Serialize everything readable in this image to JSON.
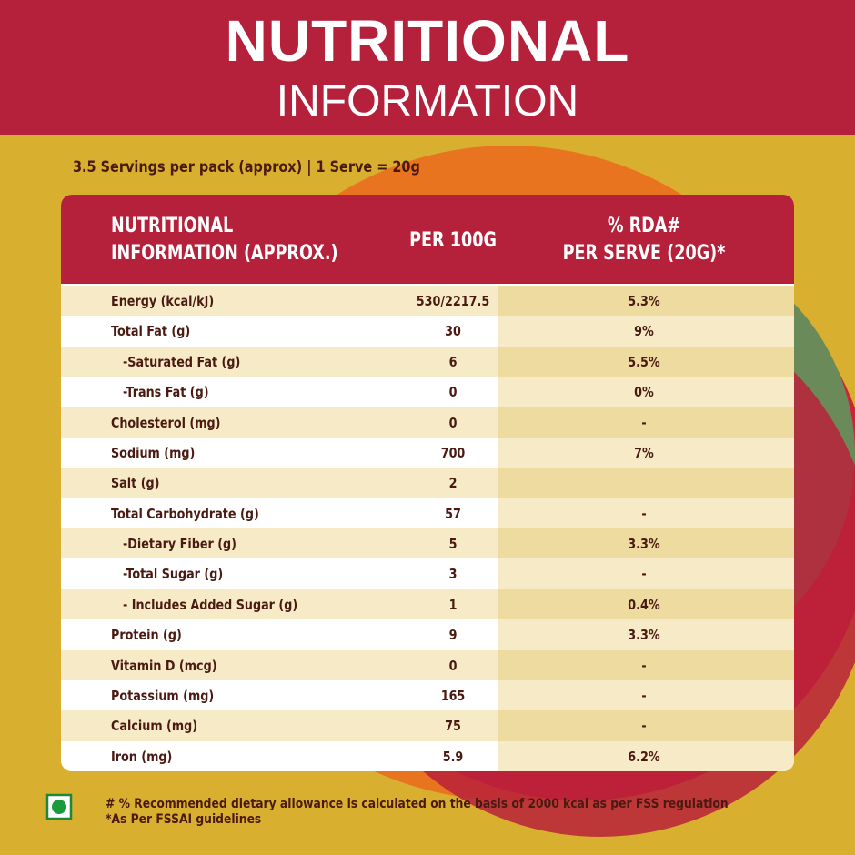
{
  "header": {
    "title": "NUTRITIONAL",
    "subtitle": "INFORMATION"
  },
  "serving": "3.5 Servings per pack (approx) | 1 Serve = 20g",
  "table": {
    "columns": [
      "NUTRITIONAL\nINFORMATION (APPROX.)",
      "PER 100G",
      "% RDA#\nPER SERVE (20G)*"
    ],
    "rows": [
      {
        "label": "Energy (kcal/kJ)",
        "per100g": "530/2217.5",
        "rda": "5.3%"
      },
      {
        "label": "Total Fat (g)",
        "per100g": "30",
        "rda": "9%"
      },
      {
        "label": "-Saturated Fat (g)",
        "per100g": "6",
        "rda": "5.5%",
        "indent": true
      },
      {
        "label": "-Trans Fat (g)",
        "per100g": "0",
        "rda": "0%",
        "indent": true
      },
      {
        "label": "Cholesterol (mg)",
        "per100g": "0",
        "rda": "-"
      },
      {
        "label": "Sodium (mg)",
        "per100g": "700",
        "rda": "7%"
      },
      {
        "label": "Salt (g)",
        "per100g": "2"
      },
      {
        "label": "Total Carbohydrate (g)",
        "per100g": "57",
        "rda": "-"
      },
      {
        "label": "-Dietary Fiber (g)",
        "per100g": "5",
        "rda": "3.3%",
        "indent": true
      },
      {
        "label": "-Total Sugar (g)",
        "per100g": "3",
        "rda": "-",
        "indent": true
      },
      {
        "label": "- Includes Added Sugar (g)",
        "per100g": "1",
        "rda": "0.4%",
        "indent": true
      },
      {
        "label": "Protein (g)",
        "per100g": "9",
        "rda": "3.3%"
      },
      {
        "label": "Vitamin D (mcg)",
        "per100g": "0",
        "rda": "-"
      },
      {
        "label": "Potassium (mg)",
        "per100g": "165",
        "rda": "-"
      },
      {
        "label": "Calcium (mg)",
        "per100g": "75",
        "rda": "-"
      },
      {
        "label": "Iron (mg)",
        "per100g": "5.9",
        "rda": "6.2%"
      }
    ]
  },
  "footnotes": [
    "# % Recommended dietary allowance  is calculated on the basis of 2000 kcal as per FSS regulation",
    "*As Per FSSAI guidelines"
  ]
}
